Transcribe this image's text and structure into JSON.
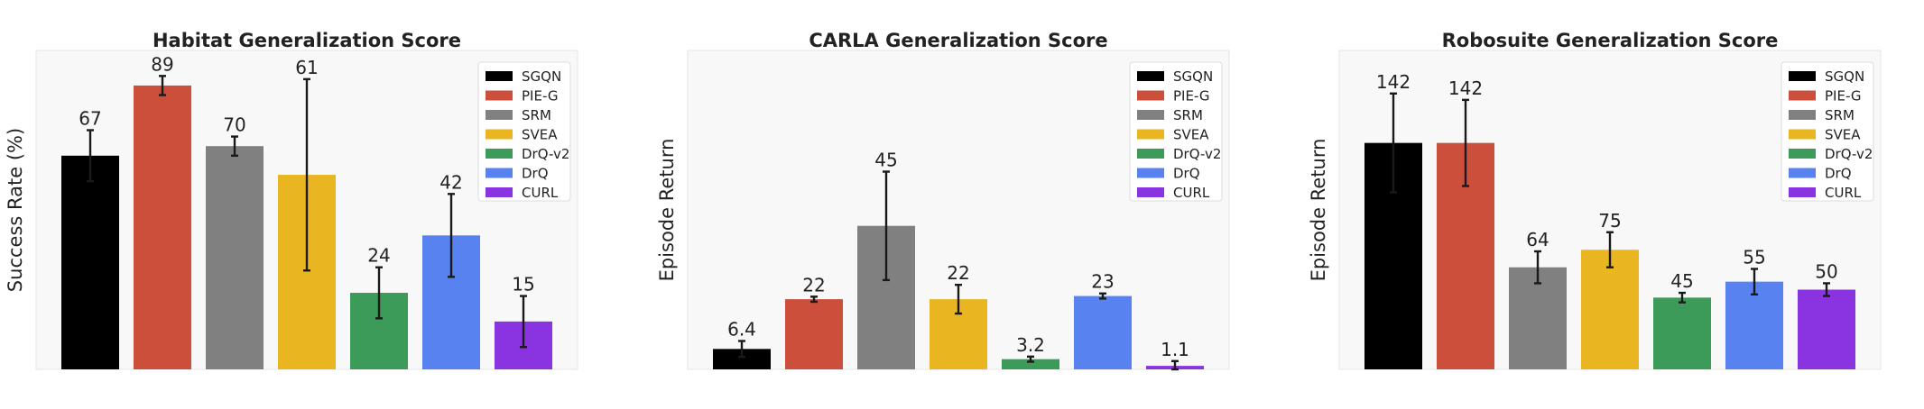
{
  "chart_data": [
    {
      "type": "bar",
      "title": "Habitat Generalization Score",
      "xlabel": "",
      "ylabel": "Success Rate (%)",
      "ylim": [
        0,
        100
      ],
      "grid": false,
      "legend_position": "top-right",
      "categories": [
        "SGQN",
        "PIE-G",
        "SRM",
        "SVEA",
        "DrQ-v2",
        "DrQ",
        "CURL"
      ],
      "values": [
        67,
        89,
        70,
        61,
        24,
        42,
        15
      ],
      "value_labels": [
        "67",
        "89",
        "70",
        "61",
        "24",
        "42",
        "15"
      ],
      "error": [
        8,
        3,
        3,
        30,
        8,
        13,
        8
      ]
    },
    {
      "type": "bar",
      "title": "CARLA Generalization Score",
      "xlabel": "",
      "ylabel": "Episode Return",
      "ylim": [
        0,
        100
      ],
      "grid": false,
      "legend_position": "top-right",
      "categories": [
        "SGQN",
        "PIE-G",
        "SRM",
        "SVEA",
        "DrQ-v2",
        "DrQ",
        "CURL"
      ],
      "values": [
        6.4,
        22,
        45,
        22,
        3.2,
        23,
        1.1
      ],
      "value_labels": [
        "6.4",
        "22",
        "45",
        "22",
        "3.2",
        "23",
        "1.1"
      ],
      "error": [
        2.5,
        0.8,
        17,
        4.5,
        0.8,
        0.8,
        1.5
      ]
    },
    {
      "type": "bar",
      "title": "Robosuite Generalization Score",
      "xlabel": "",
      "ylabel": "Episode Return",
      "ylim": [
        0,
        200
      ],
      "grid": false,
      "legend_position": "top-right",
      "categories": [
        "SGQN",
        "PIE-G",
        "SRM",
        "SVEA",
        "DrQ-v2",
        "DrQ",
        "CURL"
      ],
      "values": [
        142,
        142,
        64,
        75,
        45,
        55,
        50
      ],
      "value_labels": [
        "142",
        "142",
        "64",
        "75",
        "45",
        "55",
        "50"
      ],
      "error": [
        31,
        27,
        10,
        11,
        3,
        8,
        4
      ]
    }
  ],
  "legend": {
    "entries": [
      "SGQN",
      "PIE-G",
      "SRM",
      "SVEA",
      "DrQ-v2",
      "DrQ",
      "CURL"
    ],
    "colors": [
      "#000000",
      "#cc4f3c",
      "#808080",
      "#e9b621",
      "#3c9b58",
      "#5782f0",
      "#8a33e0"
    ]
  }
}
